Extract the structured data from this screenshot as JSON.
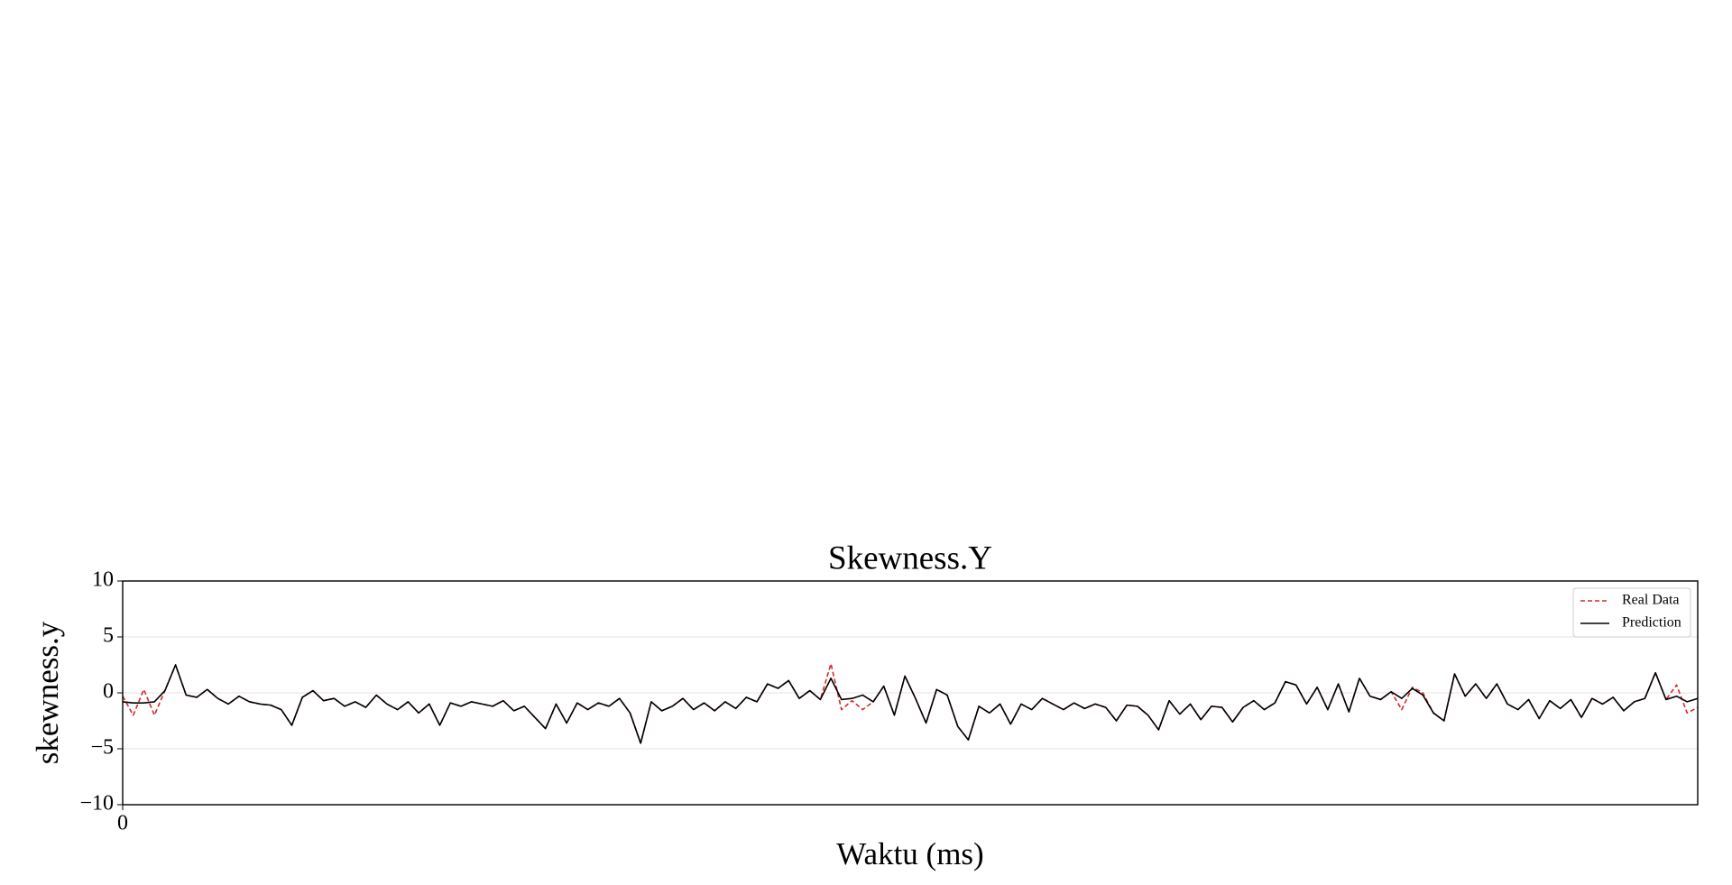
{
  "chart_data": {
    "type": "line",
    "title": "Skewness.Y",
    "xlabel": "Waktu (ms)",
    "ylabel": "skewness.y",
    "x": [
      0,
      1,
      2,
      3,
      4,
      5,
      6,
      7,
      8,
      9,
      10,
      11,
      12,
      13,
      14,
      15,
      16,
      17,
      18,
      19,
      20,
      21,
      22,
      23,
      24,
      25,
      26,
      27,
      28,
      29,
      30,
      31,
      32,
      33,
      34,
      35,
      36,
      37,
      38,
      39,
      40,
      41,
      42,
      43,
      44,
      45,
      46,
      47,
      48,
      49,
      50,
      51,
      52,
      53,
      54,
      55,
      56,
      57,
      58,
      59,
      60,
      61,
      62,
      63,
      64,
      65,
      66,
      67,
      68,
      69,
      70,
      71,
      72,
      73,
      74,
      75,
      76,
      77,
      78,
      79,
      80,
      81,
      82,
      83,
      84,
      85,
      86,
      87,
      88,
      89,
      90,
      91,
      92,
      93,
      94,
      95,
      96,
      97,
      98,
      99,
      100,
      101,
      102,
      103,
      104,
      105,
      106,
      107,
      108,
      109,
      110,
      111,
      112,
      113,
      114,
      115,
      116,
      117,
      118,
      119,
      120,
      121,
      122,
      123,
      124,
      125,
      126,
      127,
      128,
      129,
      130,
      131,
      132,
      133,
      134,
      135,
      136,
      137,
      138,
      139,
      140,
      141,
      142,
      143,
      144,
      145,
      146,
      147,
      148,
      149
    ],
    "series": [
      {
        "name": "Real Data",
        "color": "#d62728",
        "dash": true,
        "values": [
          -0.3,
          -2.0,
          0.3,
          -2.0,
          0.2,
          2.5,
          -0.2,
          -0.4,
          0.3,
          -0.5,
          -1.0,
          -0.3,
          -0.8,
          -1.0,
          -1.1,
          -1.5,
          -2.9,
          -0.4,
          0.2,
          -0.7,
          -0.5,
          -1.2,
          -0.8,
          -1.3,
          -0.2,
          -1.0,
          -1.5,
          -0.8,
          -1.8,
          -1.0,
          -2.9,
          -0.9,
          -1.2,
          -0.8,
          -1.0,
          -1.2,
          -0.7,
          -1.6,
          -1.2,
          -2.2,
          -3.2,
          -1.0,
          -2.7,
          -0.9,
          -1.5,
          -0.9,
          -1.2,
          -0.5,
          -1.8,
          -4.5,
          -0.8,
          -1.6,
          -1.2,
          -0.5,
          -1.5,
          -0.9,
          -1.6,
          -0.8,
          -1.4,
          -0.4,
          -0.8,
          0.8,
          0.4,
          1.1,
          -0.5,
          0.2,
          -0.6,
          2.6,
          -1.5,
          -0.7,
          -1.5,
          -0.8,
          0.6,
          -2.0,
          1.5,
          -0.5,
          -2.7,
          0.3,
          -0.2,
          -3.0,
          -4.2,
          -1.2,
          -1.8,
          -1.0,
          -2.8,
          -1.0,
          -1.5,
          -0.5,
          -1.0,
          -1.5,
          -0.9,
          -1.4,
          -1.0,
          -1.3,
          -2.5,
          -1.1,
          -1.2,
          -2.0,
          -3.3,
          -0.7,
          -1.9,
          -1.0,
          -2.4,
          -1.2,
          -1.3,
          -2.6,
          -1.3,
          -0.7,
          -1.5,
          -0.9,
          1.0,
          0.7,
          -1.0,
          0.5,
          -1.5,
          0.8,
          -1.7,
          1.3,
          -0.3,
          -0.6,
          0.1,
          -1.5,
          0.5,
          0.0,
          -1.8,
          -2.5,
          1.7,
          -0.3,
          0.8,
          -0.5,
          0.8,
          -1.0,
          -1.5,
          -0.6,
          -2.3,
          -0.7,
          -1.4,
          -0.6,
          -2.2,
          -0.5,
          -1.0,
          -0.4,
          -1.6,
          -0.8,
          -0.5,
          1.8,
          -0.6,
          0.7,
          -1.8,
          -1.3
        ]
      },
      {
        "name": "Prediction",
        "color": "#000000",
        "dash": false,
        "values": [
          -0.8,
          -0.9,
          -0.9,
          -0.8,
          0.2,
          2.5,
          -0.2,
          -0.4,
          0.3,
          -0.5,
          -1.0,
          -0.3,
          -0.8,
          -1.0,
          -1.1,
          -1.5,
          -2.9,
          -0.4,
          0.2,
          -0.7,
          -0.5,
          -1.2,
          -0.8,
          -1.3,
          -0.2,
          -1.0,
          -1.5,
          -0.8,
          -1.8,
          -1.0,
          -2.9,
          -0.9,
          -1.2,
          -0.8,
          -1.0,
          -1.2,
          -0.7,
          -1.6,
          -1.2,
          -2.2,
          -3.2,
          -1.0,
          -2.7,
          -0.9,
          -1.5,
          -0.9,
          -1.2,
          -0.5,
          -1.8,
          -4.5,
          -0.8,
          -1.6,
          -1.2,
          -0.5,
          -1.5,
          -0.9,
          -1.6,
          -0.8,
          -1.4,
          -0.4,
          -0.8,
          0.8,
          0.4,
          1.1,
          -0.5,
          0.2,
          -0.6,
          1.3,
          -0.6,
          -0.5,
          -0.2,
          -0.8,
          0.6,
          -2.0,
          1.5,
          -0.5,
          -2.7,
          0.3,
          -0.2,
          -3.0,
          -4.2,
          -1.2,
          -1.8,
          -1.0,
          -2.8,
          -1.0,
          -1.5,
          -0.5,
          -1.0,
          -1.5,
          -0.9,
          -1.4,
          -1.0,
          -1.3,
          -2.5,
          -1.1,
          -1.2,
          -2.0,
          -3.3,
          -0.7,
          -1.9,
          -1.0,
          -2.4,
          -1.2,
          -1.3,
          -2.6,
          -1.3,
          -0.7,
          -1.5,
          -0.9,
          1.0,
          0.7,
          -1.0,
          0.5,
          -1.5,
          0.8,
          -1.7,
          1.3,
          -0.3,
          -0.6,
          0.1,
          -0.5,
          0.4,
          -0.2,
          -1.8,
          -2.5,
          1.7,
          -0.3,
          0.8,
          -0.5,
          0.8,
          -1.0,
          -1.5,
          -0.6,
          -2.3,
          -0.7,
          -1.4,
          -0.6,
          -2.2,
          -0.5,
          -1.0,
          -0.4,
          -1.6,
          -0.8,
          -0.5,
          1.8,
          -0.6,
          -0.3,
          -0.8,
          -0.5
        ]
      }
    ],
    "xlim": [
      0,
      149
    ],
    "xticks": [
      0
    ],
    "ylim": [
      -10,
      10
    ],
    "yticks": [
      {
        "value": -10,
        "label": "−10"
      },
      {
        "value": -5,
        "label": "−5"
      },
      0,
      5,
      10
    ],
    "grid": true,
    "legend": "upper right"
  }
}
